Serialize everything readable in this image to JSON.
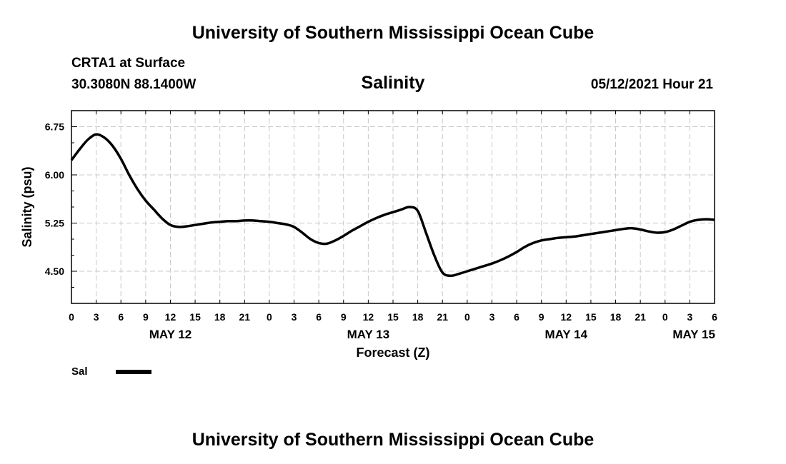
{
  "page_title": "University of Southern Mississippi Ocean Cube",
  "footer_title": "University of Southern Mississippi Ocean Cube",
  "station": "CRTA1 at Surface",
  "location": "30.3080N  88.1400W",
  "issued": "05/12/2021 Hour 21",
  "colors": {
    "line": "#000000",
    "grid": "#c8c8c8",
    "axis": "#000000"
  },
  "chart_data": {
    "type": "line",
    "title": "Salinity",
    "xlabel": "Forecast (Z)",
    "ylabel": "Salinity (psu)",
    "x_unit": "hours from 00Z May 12",
    "xlim": [
      0,
      78
    ],
    "ylim": [
      4.0,
      7.0
    ],
    "y_ticks": [
      4.5,
      5.25,
      6.0,
      6.75
    ],
    "y_tick_labels": [
      "4.50",
      "5.25",
      "6.00",
      "6.75"
    ],
    "x_ticks": [
      0,
      3,
      6,
      9,
      12,
      15,
      18,
      21,
      24,
      27,
      30,
      33,
      36,
      39,
      42,
      45,
      48,
      51,
      54,
      57,
      60,
      63,
      66,
      69,
      72,
      75,
      78
    ],
    "x_tick_labels": [
      "0",
      "3",
      "6",
      "9",
      "12",
      "15",
      "18",
      "21",
      "0",
      "3",
      "6",
      "9",
      "12",
      "15",
      "18",
      "21",
      "0",
      "3",
      "6",
      "9",
      "12",
      "15",
      "18",
      "21",
      "0",
      "3",
      "6"
    ],
    "day_labels": [
      {
        "x": 12,
        "label": "MAY 12"
      },
      {
        "x": 36,
        "label": "MAY 13"
      },
      {
        "x": 60,
        "label": "MAY 14"
      },
      {
        "x": 75.5,
        "label": "MAY 15"
      }
    ],
    "grid": true,
    "series": [
      {
        "name": "Sal",
        "x": [
          0,
          1,
          2,
          3,
          4,
          5,
          6,
          7,
          8,
          9,
          10,
          11,
          12,
          13,
          14,
          15,
          16,
          17,
          18,
          19,
          20,
          21,
          22,
          23,
          24,
          25,
          26,
          27,
          28,
          29,
          30,
          31,
          32,
          33,
          34,
          35,
          36,
          37,
          38,
          39,
          40,
          41,
          42,
          43,
          44,
          45,
          46,
          47,
          48,
          49,
          50,
          51,
          52,
          53,
          54,
          55,
          56,
          57,
          58,
          59,
          60,
          61,
          62,
          63,
          64,
          65,
          66,
          67,
          68,
          69,
          70,
          71,
          72,
          73,
          74,
          75,
          76,
          77,
          78
        ],
        "values": [
          6.23,
          6.4,
          6.55,
          6.63,
          6.58,
          6.45,
          6.25,
          6.0,
          5.78,
          5.6,
          5.46,
          5.32,
          5.22,
          5.19,
          5.2,
          5.22,
          5.24,
          5.26,
          5.27,
          5.28,
          5.28,
          5.29,
          5.29,
          5.28,
          5.27,
          5.25,
          5.23,
          5.19,
          5.1,
          5.0,
          4.94,
          4.93,
          4.98,
          5.05,
          5.13,
          5.2,
          5.27,
          5.33,
          5.38,
          5.42,
          5.46,
          5.5,
          5.44,
          5.1,
          4.75,
          4.48,
          4.43,
          4.46,
          4.5,
          4.54,
          4.58,
          4.62,
          4.67,
          4.73,
          4.8,
          4.88,
          4.94,
          4.98,
          5.0,
          5.02,
          5.03,
          5.04,
          5.06,
          5.08,
          5.1,
          5.12,
          5.14,
          5.16,
          5.17,
          5.15,
          5.12,
          5.1,
          5.11,
          5.15,
          5.21,
          5.27,
          5.3,
          5.31,
          5.3
        ]
      }
    ],
    "legend": [
      {
        "label": "Sal"
      }
    ]
  }
}
